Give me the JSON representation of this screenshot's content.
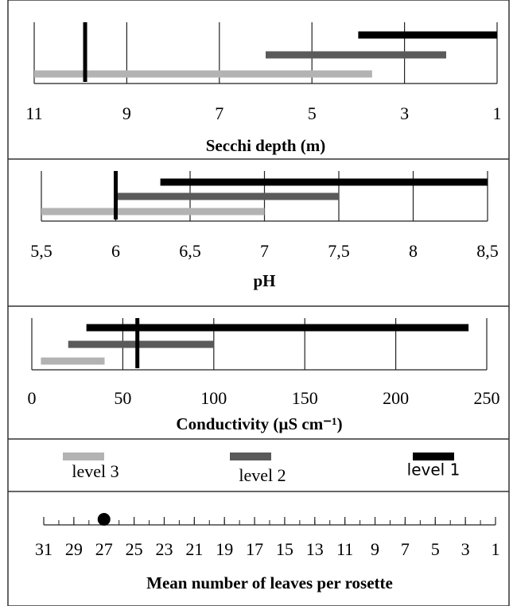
{
  "chart_data": [
    {
      "type": "range",
      "xlabel": "Secchi depth (m)",
      "xlim": [
        11,
        1
      ],
      "xticks": [
        11,
        9,
        7,
        5,
        3,
        1
      ],
      "grid": true,
      "series": [
        {
          "values": [
            11,
            3.7
          ]
        },
        {
          "values": [
            6,
            2.1
          ]
        },
        {
          "values": [
            4,
            1
          ]
        }
      ],
      "marker": 9.9
    },
    {
      "type": "range",
      "xlabel": "pH",
      "xlim": [
        5.5,
        8.5
      ],
      "xticks": [
        {
          "value": 5.5,
          "label": "5,5"
        },
        6,
        {
          "value": 6.5,
          "label": "6,5"
        },
        7,
        {
          "value": 7.5,
          "label": "7,5"
        },
        8,
        {
          "value": 8.5,
          "label": "8,5"
        }
      ],
      "grid": true,
      "series": [
        {
          "values": [
            5.5,
            7
          ]
        },
        {
          "values": [
            6,
            7.5
          ]
        },
        {
          "values": [
            6.3,
            8.5
          ]
        }
      ],
      "marker": 6
    },
    {
      "type": "range",
      "xlabel": "Conductivity (µS cm⁻¹)",
      "xlim": [
        0,
        250
      ],
      "xticks": [
        0,
        50,
        100,
        150,
        200,
        250
      ],
      "grid": true,
      "series": [
        {
          "values": [
            5,
            40
          ]
        },
        {
          "values": [
            20,
            100
          ]
        },
        {
          "values": [
            30,
            240
          ]
        }
      ],
      "marker": 58
    },
    {
      "type": "scale",
      "xlabel": "Mean number of leaves per rosette",
      "xlim": [
        31,
        1
      ],
      "xticks": [
        31,
        29,
        27,
        25,
        23,
        21,
        19,
        17,
        15,
        13,
        11,
        9,
        7,
        5,
        3,
        1
      ],
      "minor_tick_step": 1,
      "values": [
        27
      ]
    }
  ],
  "legend": [
    {
      "name": "level 3",
      "color": "#b3b3b3"
    },
    {
      "name": "level 2",
      "color": "#5a5a5a"
    },
    {
      "name": "level 1",
      "color": "#000000"
    }
  ]
}
